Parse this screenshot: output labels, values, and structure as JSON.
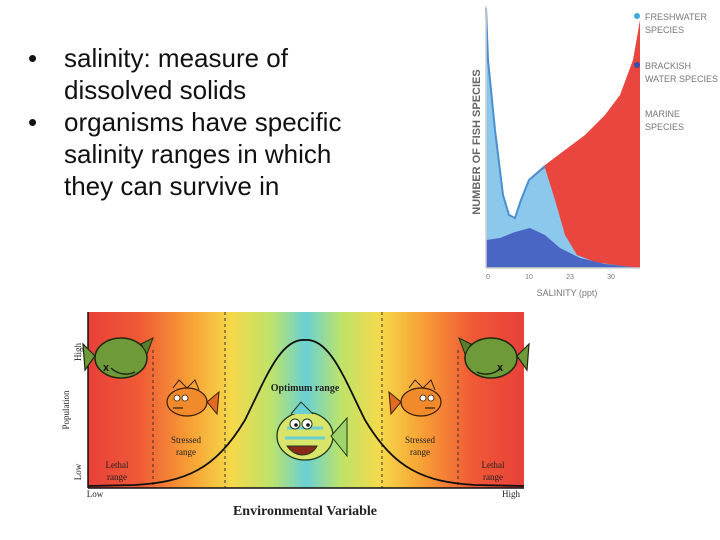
{
  "bullets": [
    {
      "marker": "•",
      "text_line1": "salinity: measure of",
      "text_line2": "dissolved solids"
    },
    {
      "marker": "•",
      "text_line1": "organisms have specific",
      "text_line2": "salinity ranges in which",
      "text_line3": "they can survive in"
    }
  ],
  "salinity_chart": {
    "ylabel": "NUMBER OF FISH SPECIES",
    "xlabel": "SALINITY (ppt)",
    "x_ticks": [
      "0",
      "10",
      "23",
      "30"
    ],
    "legend": [
      {
        "line1": "FRESHWATER",
        "line2": "SPECIES",
        "color": "#3fa9e0"
      },
      {
        "line1": "BRACKISH",
        "line2": "WATER SPECIES",
        "color": "#3b4fa8"
      },
      {
        "line1": "MARINE",
        "line2": "SPECIES",
        "color": "#e8463f"
      }
    ]
  },
  "tolerance_figure": {
    "optimum_label": "Optimum range",
    "stressed_left_line1": "Stressed",
    "stressed_left_line2": "range",
    "stressed_right_line1": "Stressed",
    "stressed_right_line2": "range",
    "lethal_left_line1": "Lethal",
    "lethal_left_line2": "range",
    "lethal_right_line1": "Lethal",
    "lethal_right_line2": "range",
    "y_axis_label": "Population",
    "y_high": "High",
    "y_low": "Low",
    "x_low": "Low",
    "x_high": "High",
    "x_axis_label": "Environmental Variable",
    "dead_fish_mark": "x"
  }
}
